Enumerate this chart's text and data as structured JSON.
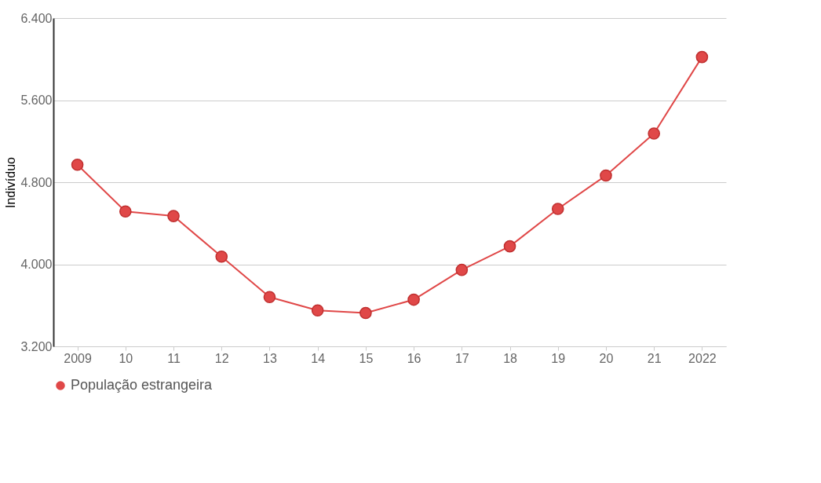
{
  "chart_data": {
    "type": "line",
    "ylabel": "Indivíduo",
    "categories": [
      "2009",
      "10",
      "11",
      "12",
      "13",
      "14",
      "15",
      "16",
      "17",
      "18",
      "19",
      "20",
      "21",
      "2022"
    ],
    "series": [
      {
        "name": "População estrangeira",
        "color": "#e04848",
        "values": [
          4970,
          4515,
          4470,
          4075,
          3680,
          3550,
          3525,
          3655,
          3945,
          4175,
          4540,
          4865,
          5275,
          6020
        ]
      }
    ],
    "ylim": [
      3200,
      6400
    ],
    "yticks": [
      {
        "value": 3200,
        "label": "3.200"
      },
      {
        "value": 4000,
        "label": "4.000"
      },
      {
        "value": 4800,
        "label": "4.800"
      },
      {
        "value": 5600,
        "label": "5.600"
      },
      {
        "value": 6400,
        "label": "6.400"
      }
    ],
    "grid": "y",
    "legend": "bottom",
    "marker": "circle",
    "line_style": "solid"
  }
}
